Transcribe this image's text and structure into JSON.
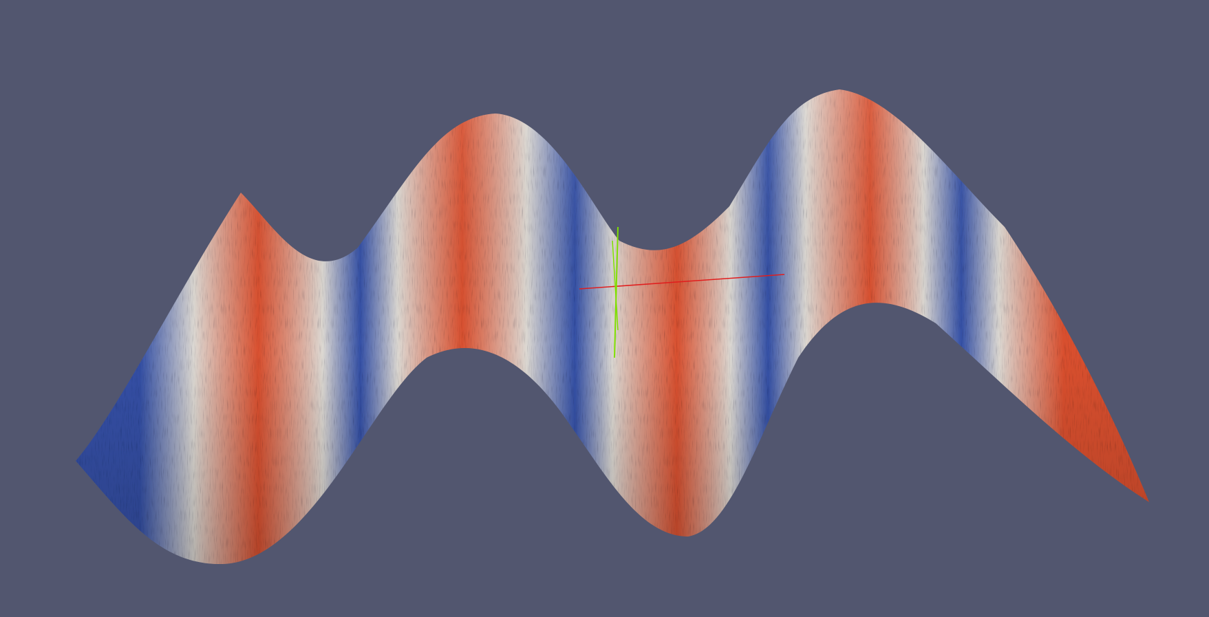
{
  "viewport": {
    "background_color": "#52566f",
    "render_kind": "3D wavy surface mesh with diverging blue-white-red color map"
  },
  "surface": {
    "colormap": {
      "low": "#3450a6",
      "mid": "#dcd8d2",
      "high": "#d9502f"
    },
    "shading": "faceted, noisy"
  },
  "axes_gizmo": {
    "x_axis_color": "#e11d1d",
    "y_axis_color": "#7fe000"
  }
}
